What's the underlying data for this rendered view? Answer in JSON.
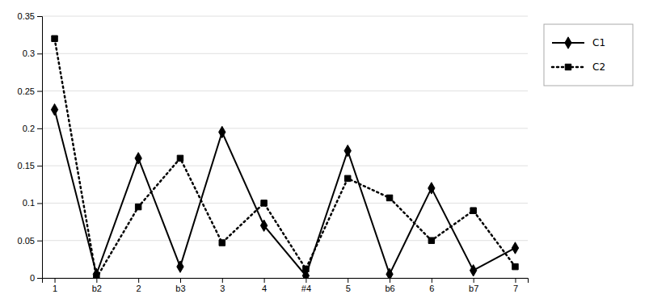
{
  "chart_data": {
    "type": "line",
    "categories": [
      "1",
      "b2",
      "2",
      "b3",
      "3",
      "4",
      "#4",
      "5",
      "b6",
      "6",
      "b7",
      "7"
    ],
    "series": [
      {
        "name": "C1",
        "color": "#000000",
        "marker": "diamond",
        "line_style": "solid",
        "values": [
          0.225,
          0.005,
          0.16,
          0.015,
          0.195,
          0.07,
          0.003,
          0.17,
          0.005,
          0.12,
          0.01,
          0.04
        ]
      },
      {
        "name": "C2",
        "color": "#000000",
        "marker": "square",
        "line_style": "dotted",
        "values": [
          0.32,
          0.0,
          0.095,
          0.16,
          0.047,
          0.1,
          0.012,
          0.133,
          0.107,
          0.05,
          0.09,
          0.015
        ]
      }
    ],
    "ylim": [
      0,
      0.35
    ],
    "yticks": [
      0,
      0.05,
      0.1,
      0.15,
      0.2,
      0.25,
      0.3,
      0.35
    ],
    "grid": true,
    "legend": "right"
  }
}
